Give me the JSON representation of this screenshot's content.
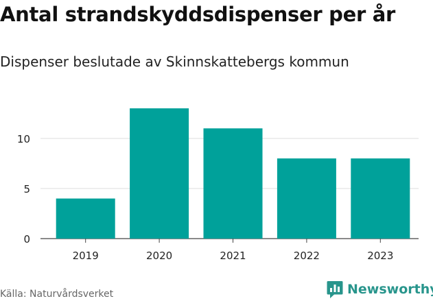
{
  "title": "Antal strandskyddsdispenser per år",
  "subtitle": "Dispenser beslutade av Skinnskattebergs kommun",
  "source": "Källa: Naturvårdsverket",
  "brand": {
    "name": "Newsworthy",
    "icon": "newsworthy-logo-icon",
    "color": "#28958c"
  },
  "chart_data": {
    "type": "bar",
    "categories": [
      "2019",
      "2020",
      "2021",
      "2022",
      "2023"
    ],
    "values": [
      4,
      13,
      11,
      8,
      8
    ],
    "yticks": [
      0,
      5,
      10
    ],
    "ylim": [
      0,
      13.8
    ],
    "grid": true,
    "bar_color": "#00a19a"
  }
}
